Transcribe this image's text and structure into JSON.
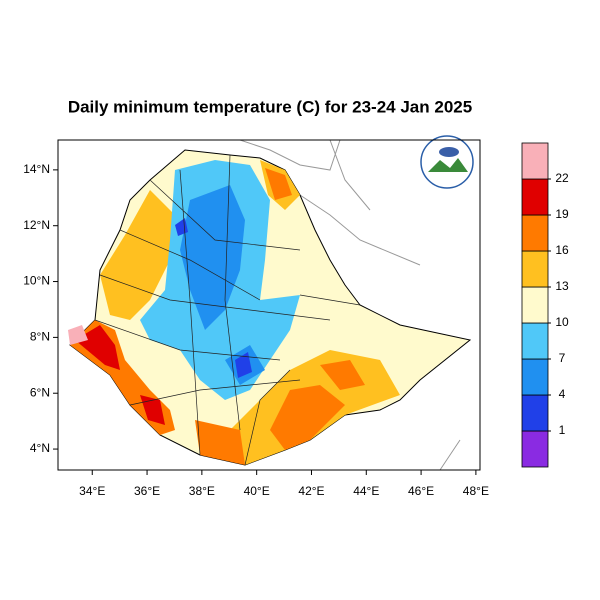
{
  "chart_data": {
    "type": "map",
    "title": "Daily minimum temperature (C) for 23-24 Jan 2025",
    "xlim": [
      32.75,
      48.15
    ],
    "ylim": [
      3.25,
      15.07
    ],
    "xticks": [
      {
        "value": 34,
        "label": "34°E"
      },
      {
        "value": 36,
        "label": "36°E"
      },
      {
        "value": 38,
        "label": "38°E"
      },
      {
        "value": 40,
        "label": "40°E"
      },
      {
        "value": 42,
        "label": "42°E"
      },
      {
        "value": 44,
        "label": "44°E"
      },
      {
        "value": 46,
        "label": "46°E"
      },
      {
        "value": 48,
        "label": "48°E"
      }
    ],
    "yticks": [
      {
        "value": 4,
        "label": "4°N"
      },
      {
        "value": 6,
        "label": "6°N"
      },
      {
        "value": 8,
        "label": "8°N"
      },
      {
        "value": 10,
        "label": "10°N"
      },
      {
        "value": 12,
        "label": "12°N"
      },
      {
        "value": 14,
        "label": "14°N"
      }
    ],
    "colorbar": {
      "levels": [
        1,
        4,
        7,
        10,
        13,
        16,
        19,
        22
      ],
      "colors": [
        "#8a2be2",
        "#2040e8",
        "#2090f0",
        "#50c8f8",
        "#fffacd",
        "#ffc020",
        "#ff7a00",
        "#e00000",
        "#f9b0b8"
      ]
    }
  }
}
